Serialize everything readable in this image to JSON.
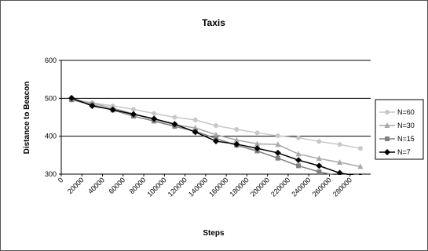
{
  "chart_data": {
    "type": "line",
    "title": "Taxis",
    "xlabel": "Steps",
    "ylabel": "Distance to Beacon",
    "xlim": [
      0,
      300000
    ],
    "ylim": [
      300,
      600
    ],
    "x_ticks": [
      "0",
      "20000",
      "40000",
      "60000",
      "80000",
      "100000",
      "120000",
      "140000",
      "160000",
      "180000",
      "200000",
      "220000",
      "240000",
      "260000",
      "280000"
    ],
    "y_ticks": [
      "300",
      "400",
      "500",
      "600"
    ],
    "grid": "horizontal major lines",
    "legend_position": "right",
    "x": [
      10000,
      30000,
      50000,
      70000,
      90000,
      110000,
      130000,
      150000,
      170000,
      190000,
      210000,
      230000,
      250000,
      270000,
      290000
    ],
    "series": [
      {
        "name": "N=60",
        "color": "#c8c8c8",
        "marker": "circle",
        "values": [
          497,
          488,
          480,
          471,
          460,
          450,
          443,
          428,
          418,
          409,
          401,
          396,
          386,
          378,
          368
        ]
      },
      {
        "name": "N=30",
        "color": "#a8a8a8",
        "marker": "triangle",
        "values": [
          498,
          487,
          474,
          459,
          444,
          430,
          422,
          404,
          390,
          380,
          378,
          353,
          341,
          331,
          320
        ]
      },
      {
        "name": "N=15",
        "color": "#808080",
        "marker": "square",
        "values": [
          496,
          483,
          469,
          453,
          440,
          426,
          413,
          394,
          376,
          361,
          342,
          322,
          306,
          295,
          290
        ]
      },
      {
        "name": "N=7",
        "color": "#000000",
        "marker": "diamond",
        "values": [
          501,
          480,
          470,
          458,
          446,
          432,
          411,
          387,
          379,
          368,
          356,
          337,
          322,
          303,
          294
        ]
      }
    ]
  }
}
